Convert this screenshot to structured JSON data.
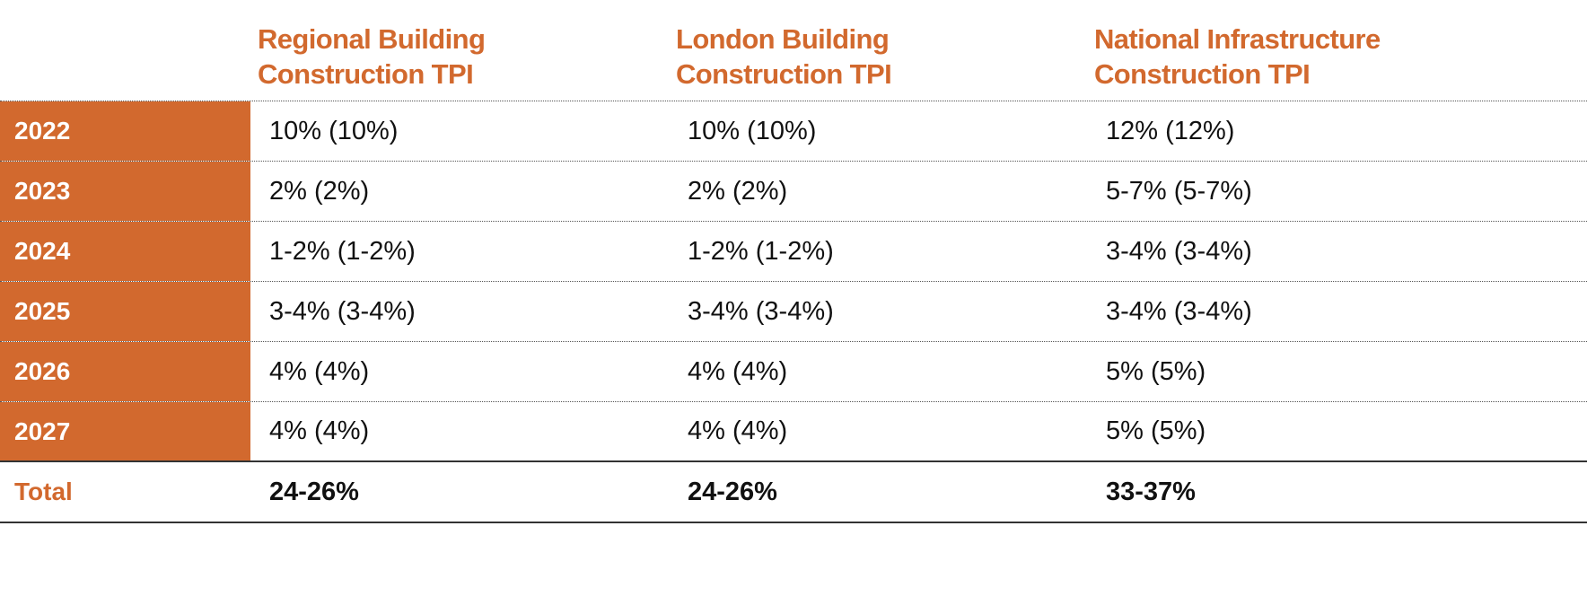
{
  "colors": {
    "accent": "#d2692e",
    "text": "#111111",
    "year_text": "#ffffff"
  },
  "table": {
    "headers": [
      {
        "line1": "Regional Building",
        "line2": "Construction TPI"
      },
      {
        "line1": "London Building",
        "line2": "Construction TPI"
      },
      {
        "line1": "National Infrastructure",
        "line2": "Construction TPI"
      }
    ],
    "rows": [
      {
        "year": "2022",
        "values": [
          "10% (10%)",
          "10% (10%)",
          "12% (12%)"
        ]
      },
      {
        "year": "2023",
        "values": [
          "2% (2%)",
          "2% (2%)",
          "5-7% (5-7%)"
        ]
      },
      {
        "year": "2024",
        "values": [
          "1-2% (1-2%)",
          "1-2% (1-2%)",
          "3-4% (3-4%)"
        ]
      },
      {
        "year": "2025",
        "values": [
          "3-4% (3-4%)",
          "3-4% (3-4%)",
          "3-4% (3-4%)"
        ]
      },
      {
        "year": "2026",
        "values": [
          "4% (4%)",
          "4% (4%)",
          "5% (5%)"
        ]
      },
      {
        "year": "2027",
        "values": [
          "4% (4%)",
          "4% (4%)",
          "5% (5%)"
        ]
      }
    ],
    "total": {
      "label": "Total",
      "values": [
        "24-26%",
        "24-26%",
        "33-37%"
      ]
    }
  }
}
